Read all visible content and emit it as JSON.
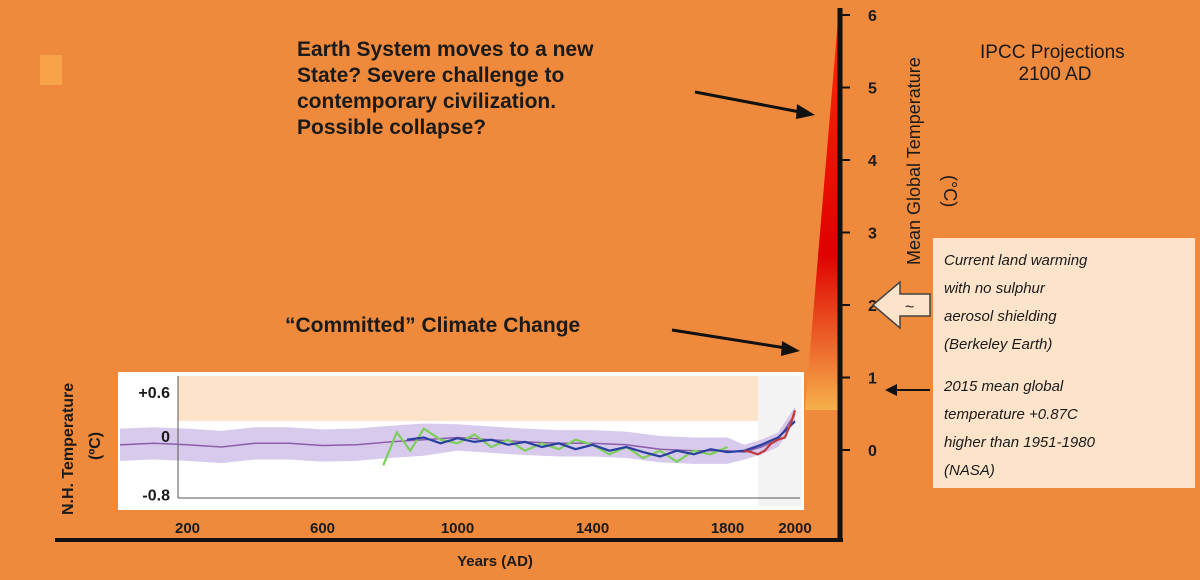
{
  "chart_data": {
    "type": "line",
    "headline": [
      "Earth System moves to a new",
      "State? Severe challenge to",
      "contemporary civilization.",
      "Possible collapse?"
    ],
    "committed_label": "“Committed” Climate Change",
    "ipcc_label": [
      "IPCC Projections",
      "2100 AD"
    ],
    "right_axis": {
      "label": "Mean Global Temperature",
      "unit": "(°C)",
      "ticks": [
        "0",
        "1",
        "2",
        "3",
        "4",
        "5",
        "6"
      ],
      "range": [
        0,
        6
      ]
    },
    "x_axis": {
      "label": "Years (AD)",
      "ticks": [
        "200",
        "600",
        "1000",
        "1400",
        "1800",
        "2000"
      ],
      "range": [
        0,
        2100
      ]
    },
    "inset": {
      "ylabel": "N.H. Temperature",
      "yunit": "(ºC)",
      "yticks": [
        "+0.6",
        "0",
        "-0.8"
      ],
      "yrange": [
        -0.8,
        0.6
      ],
      "series": [
        {
          "color": "#8a5fa8",
          "x": [
            0,
            100,
            200,
            300,
            400,
            500,
            600,
            700,
            800,
            900,
            1000,
            1100,
            1200,
            1300,
            1400,
            1500,
            1600,
            1700,
            1800,
            1850,
            1900,
            1950,
            2000
          ],
          "y": [
            -0.12,
            -0.1,
            -0.12,
            -0.15,
            -0.1,
            -0.1,
            -0.13,
            -0.12,
            -0.08,
            -0.05,
            -0.02,
            -0.05,
            -0.08,
            -0.1,
            -0.1,
            -0.12,
            -0.18,
            -0.2,
            -0.2,
            -0.22,
            -0.15,
            -0.05,
            0.3
          ]
        },
        {
          "color": "#7ccf58",
          "x": [
            780,
            820,
            860,
            900,
            950,
            1000,
            1050,
            1100,
            1150,
            1200,
            1250,
            1300,
            1350,
            1400,
            1450,
            1500,
            1550,
            1600,
            1650,
            1700,
            1750,
            1800
          ],
          "y": [
            -0.4,
            0.05,
            -0.2,
            0.1,
            -0.05,
            -0.1,
            0.02,
            -0.15,
            -0.05,
            -0.2,
            -0.1,
            -0.18,
            -0.05,
            -0.12,
            -0.25,
            -0.15,
            -0.3,
            -0.2,
            -0.35,
            -0.2,
            -0.25,
            -0.15
          ]
        },
        {
          "color": "#2a3fa0",
          "x": [
            850,
            900,
            950,
            1000,
            1050,
            1100,
            1150,
            1200,
            1250,
            1300,
            1350,
            1400,
            1450,
            1500,
            1550,
            1600,
            1650,
            1700,
            1750,
            1800,
            1850,
            1900,
            1950,
            2000
          ],
          "y": [
            -0.05,
            -0.02,
            -0.1,
            -0.03,
            -0.08,
            -0.05,
            -0.12,
            -0.08,
            -0.15,
            -0.1,
            -0.18,
            -0.12,
            -0.2,
            -0.15,
            -0.22,
            -0.28,
            -0.2,
            -0.25,
            -0.18,
            -0.22,
            -0.2,
            -0.12,
            -0.02,
            0.2
          ]
        },
        {
          "color": "#c23a3a",
          "x": [
            1850,
            1870,
            1890,
            1910,
            1930,
            1950,
            1970,
            1990,
            2000
          ],
          "y": [
            -0.2,
            -0.22,
            -0.25,
            -0.2,
            -0.1,
            -0.05,
            -0.02,
            0.2,
            0.35
          ]
        }
      ]
    },
    "notes": [
      [
        "Current land warming",
        "with no sulphur",
        "aerosol shielding",
        "(Berkeley Earth)"
      ],
      [
        "2015 mean global",
        "temperature +0.87C",
        "higher than 1951-1980",
        "(NASA)"
      ]
    ],
    "colors": {
      "background": "#ef8a3c",
      "wedge_top": "#e00000",
      "wedge_bottom": "#f6b04a",
      "note_box": "#fde3c9",
      "inset_band": "#c8b4e4"
    }
  }
}
